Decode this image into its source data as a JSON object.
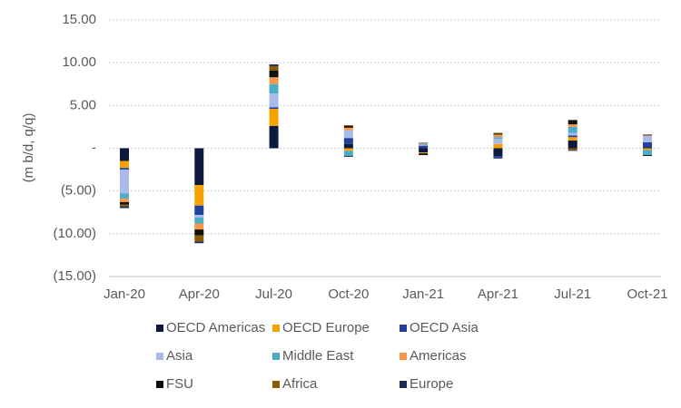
{
  "chart_data": {
    "type": "stacked_bar",
    "y_label": "(m b/d, q/q)",
    "categories": [
      "Jan-20",
      "Apr-20",
      "Jul-20",
      "Oct-20",
      "Jan-21",
      "Apr-21",
      "Jul-21",
      "Oct-21"
    ],
    "series": [
      {
        "name": "OECD Americas",
        "color": "#0e1a3d",
        "values": [
          -1.5,
          -4.3,
          2.6,
          0.5,
          -0.5,
          -0.9,
          0.9,
          0.1
        ]
      },
      {
        "name": "OECD Europe",
        "color": "#f5a200",
        "values": [
          -0.8,
          -2.4,
          2.0,
          -0.3,
          -0.1,
          0.5,
          0.4,
          -0.2
        ]
      },
      {
        "name": "OECD Asia",
        "color": "#20409a",
        "values": [
          -0.2,
          -1.1,
          0.2,
          0.7,
          0.3,
          -0.2,
          0.2,
          0.6
        ]
      },
      {
        "name": "Asia",
        "color": "#a9b9e8",
        "values": [
          -2.8,
          -0.3,
          1.6,
          0.9,
          0.1,
          0.6,
          0.3,
          0.7
        ]
      },
      {
        "name": "Middle East",
        "color": "#4badc7",
        "values": [
          -0.6,
          -0.7,
          1.1,
          -0.6,
          0.1,
          0.2,
          0.7,
          -0.6
        ]
      },
      {
        "name": "Americas",
        "color": "#f79646",
        "values": [
          -0.4,
          -0.7,
          0.8,
          0.3,
          0.05,
          0.3,
          0.3,
          0.1
        ]
      },
      {
        "name": "FSU",
        "color": "#111111",
        "values": [
          -0.3,
          -0.7,
          0.8,
          0.2,
          -0.2,
          0.1,
          0.5,
          -0.1
        ]
      },
      {
        "name": "Africa",
        "color": "#8c5a00",
        "values": [
          -0.2,
          -0.7,
          0.5,
          0.1,
          0.05,
          0.1,
          -0.2,
          0
        ]
      },
      {
        "name": "Europe",
        "color": "#1f2a57",
        "values": [
          -0.2,
          -0.2,
          0.2,
          -0.1,
          0.05,
          -0.1,
          -0.1,
          0.1
        ]
      }
    ],
    "ylim": [
      -15,
      15
    ],
    "yticks": [
      {
        "value": -15,
        "label": "(15.00)"
      },
      {
        "value": -10,
        "label": "(10.00)"
      },
      {
        "value": -5,
        "label": "(5.00)"
      },
      {
        "value": 0,
        "label": "-"
      },
      {
        "value": 5,
        "label": "5.00"
      },
      {
        "value": 10,
        "label": "10.00"
      },
      {
        "value": 15,
        "label": "15.00"
      }
    ],
    "grid": true
  }
}
